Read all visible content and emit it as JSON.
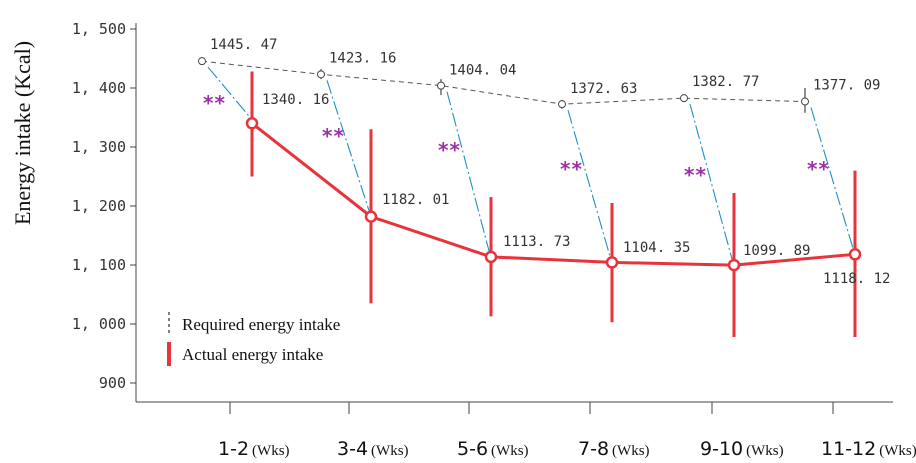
{
  "chart_data": {
    "type": "line",
    "ylabel": "Energy intake (Kcal)",
    "ylim": [
      850,
      1500
    ],
    "yticks": [
      "1, 500",
      "1, 400",
      "1, 300",
      "1, 200",
      "1, 100",
      "1, 000",
      "900"
    ],
    "ytick_values": [
      1500,
      1400,
      1300,
      1200,
      1100,
      1000,
      900
    ],
    "categories": [
      "1-2",
      "3-4",
      "5-6",
      "7-8",
      "9-10",
      "11-12"
    ],
    "category_unit": "(Wks)",
    "significance_label": "**",
    "series": [
      {
        "name": "Required energy intake",
        "style": "dashed",
        "color": "#555555",
        "values": [
          1445.47,
          1423.16,
          1404.04,
          1372.63,
          1382.77,
          1377.09
        ],
        "value_labels": [
          "1445. 47",
          "1423. 16",
          "1404. 04",
          "1372. 63",
          "1382. 77",
          "1377. 09"
        ],
        "err_low": [
          1440,
          1415,
          1388,
          1365,
          1376,
          1358
        ],
        "err_high": [
          1452,
          1432,
          1415,
          1380,
          1389,
          1400
        ]
      },
      {
        "name": "Actual energy intake",
        "style": "solid",
        "color": "#e8323c",
        "values": [
          1340.16,
          1182.01,
          1113.73,
          1104.35,
          1099.89,
          1118.12
        ],
        "value_labels": [
          "1340. 16",
          "1182. 01",
          "1113. 73",
          "1104. 35",
          "1099. 89",
          "1118. 12"
        ],
        "err_low": [
          1250,
          1035,
          1013,
          1003,
          978,
          978
        ],
        "err_high": [
          1428,
          1330,
          1215,
          1205,
          1222,
          1260
        ]
      }
    ],
    "connector_color": "#1f8fc9",
    "legend_position": "bottom-left"
  }
}
